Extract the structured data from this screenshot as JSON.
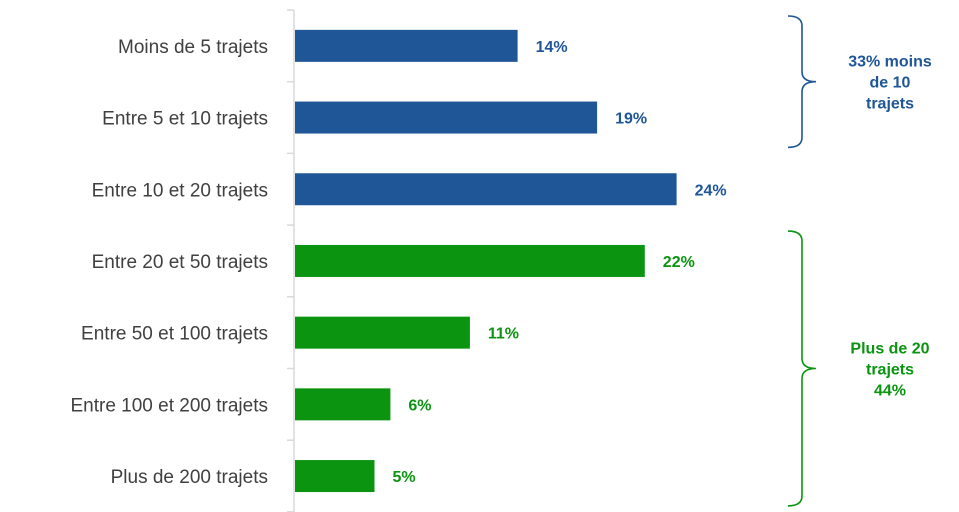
{
  "chart_data": {
    "type": "bar",
    "orientation": "horizontal",
    "categories": [
      "Moins de 5 trajets",
      "Entre 5 et 10 trajets",
      "Entre 10 et 20 trajets",
      "Entre 20 et 50 trajets",
      "Entre 50 et 100 trajets",
      "Entre 100 et 200 trajets",
      "Plus de 200 trajets"
    ],
    "values": [
      14,
      19,
      24,
      22,
      11,
      6,
      5
    ],
    "value_labels": [
      "14%",
      "19%",
      "24%",
      "22%",
      "11%",
      "6%",
      "5%"
    ],
    "bar_colors": [
      "#1f5697",
      "#1f5697",
      "#1f5697",
      "#0a9410",
      "#0a9410",
      "#0a9410",
      "#0a9410"
    ],
    "xlim": [
      0,
      30
    ],
    "grid": false,
    "annotations": [
      {
        "lines": [
          "33% moins",
          "de 10",
          "trajets"
        ],
        "color": "#1f5697",
        "spans_categories": [
          0,
          1
        ]
      },
      {
        "lines": [
          "Plus de 20",
          "trajets",
          "44%"
        ],
        "color": "#0a9410",
        "spans_categories": [
          3,
          6
        ]
      }
    ]
  }
}
